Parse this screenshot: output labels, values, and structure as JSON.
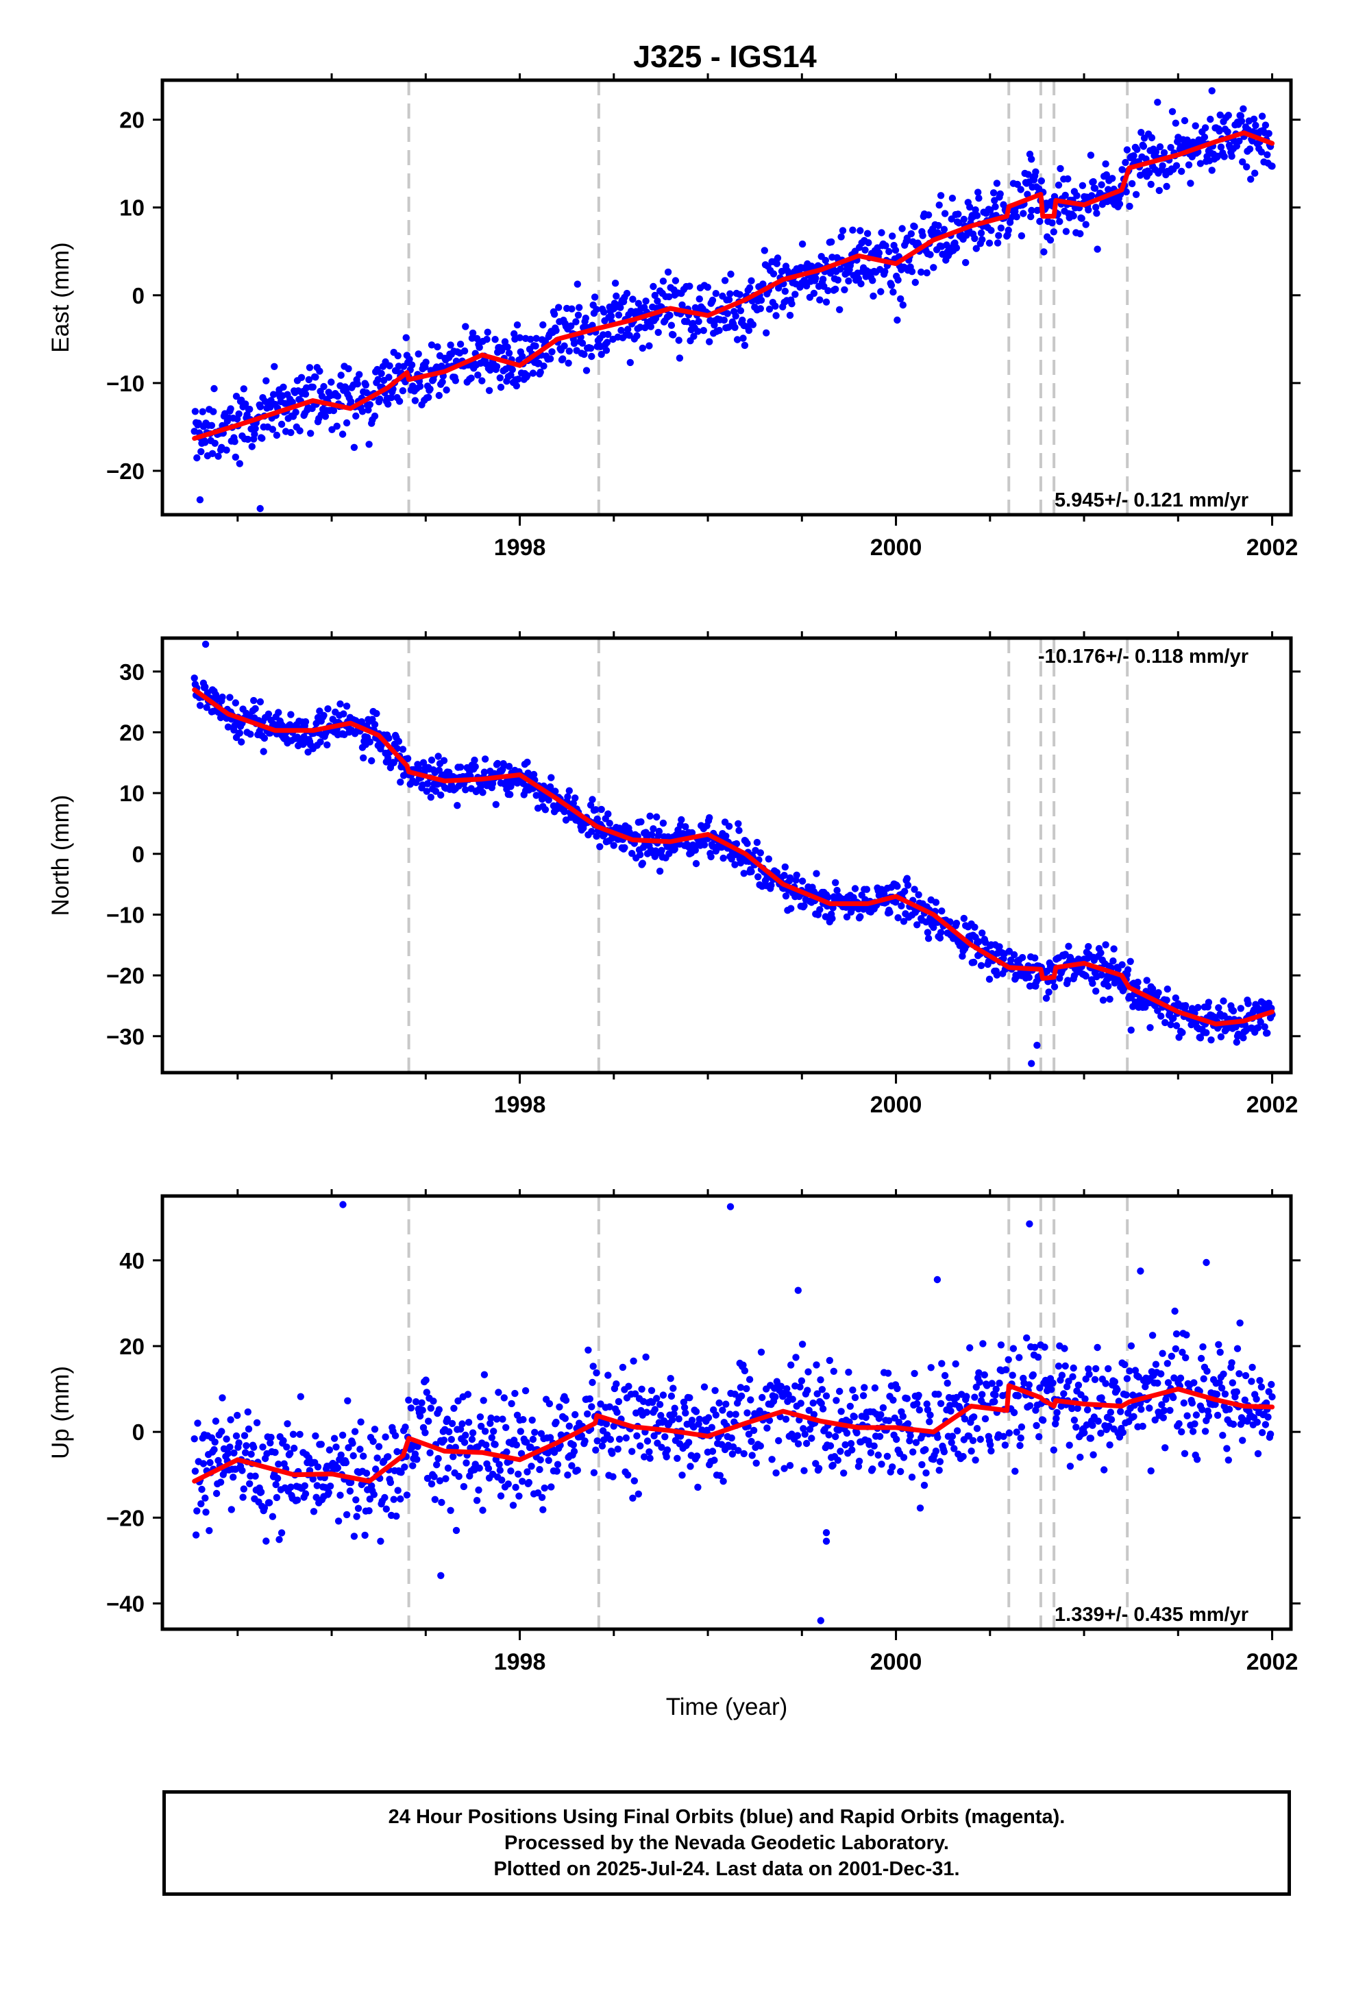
{
  "title": "J325 - IGS14",
  "colors": {
    "data": "#0000ff",
    "model": "#ff0000",
    "breaks": "#c8c8c8",
    "axis": "#000000"
  },
  "chart_data": [
    {
      "type": "scatter",
      "component": "east",
      "ylabel": "East (mm)",
      "ylim": [
        -25,
        24.5
      ],
      "yticks": [
        -20,
        -10,
        0,
        10,
        20
      ],
      "xlim": [
        1996.1,
        2002.1
      ],
      "xticks": [
        1998,
        2000,
        2002
      ],
      "tick_labels": [
        "1998",
        "2000",
        "2002"
      ],
      "rate_label": "5.945+/- 0.121 mm/yr",
      "noise_sd": 1.8,
      "model_knots": [
        [
          1996.27,
          -16.3
        ],
        [
          1996.5,
          -14.8
        ],
        [
          1996.9,
          -12.0
        ],
        [
          1997.1,
          -12.9
        ],
        [
          1997.3,
          -10.5
        ],
        [
          1997.4,
          -8.8
        ],
        [
          1997.41,
          -9.6
        ],
        [
          1997.6,
          -8.7
        ],
        [
          1997.8,
          -6.8
        ],
        [
          1998.0,
          -8.0
        ],
        [
          1998.2,
          -5.0
        ],
        [
          1998.41,
          -3.8
        ],
        [
          1998.6,
          -2.8
        ],
        [
          1998.8,
          -1.5
        ],
        [
          1999.0,
          -2.3
        ],
        [
          1999.2,
          -0.5
        ],
        [
          1999.4,
          1.8
        ],
        [
          1999.6,
          2.9
        ],
        [
          1999.8,
          4.5
        ],
        [
          2000.0,
          3.6
        ],
        [
          2000.2,
          6.3
        ],
        [
          2000.4,
          7.9
        ],
        [
          2000.59,
          9.0
        ],
        [
          2000.6,
          10.1
        ],
        [
          2000.77,
          11.5
        ],
        [
          2000.78,
          9.0
        ],
        [
          2000.84,
          9.0
        ],
        [
          2000.85,
          10.8
        ],
        [
          2001.0,
          10.3
        ],
        [
          2001.2,
          12.0
        ],
        [
          2001.24,
          14.5
        ],
        [
          2001.5,
          16.0
        ],
        [
          2001.7,
          17.5
        ],
        [
          2001.85,
          18.5
        ],
        [
          2002.0,
          17.3
        ]
      ],
      "outliers": [
        [
          1996.3,
          -23.3
        ],
        [
          1996.62,
          -24.3
        ],
        [
          2000.72,
          15.5
        ],
        [
          2001.68,
          23.3
        ]
      ]
    },
    {
      "type": "scatter",
      "component": "north",
      "ylabel": "North (mm)",
      "ylim": [
        -36,
        35.5
      ],
      "yticks": [
        -30,
        -20,
        -10,
        0,
        10,
        20,
        30
      ],
      "xlim": [
        1996.1,
        2002.1
      ],
      "xticks": [
        1998,
        2000,
        2002
      ],
      "tick_labels": [
        "1998",
        "2000",
        "2002"
      ],
      "rate_label": "-10.176+/- 0.118 mm/yr",
      "noise_sd": 1.6,
      "model_knots": [
        [
          1996.27,
          27.0
        ],
        [
          1996.45,
          23.0
        ],
        [
          1996.7,
          20.3
        ],
        [
          1996.9,
          20.3
        ],
        [
          1997.1,
          21.5
        ],
        [
          1997.25,
          19.5
        ],
        [
          1997.4,
          14.5
        ],
        [
          1997.41,
          13.5
        ],
        [
          1997.6,
          12.0
        ],
        [
          1997.8,
          12.3
        ],
        [
          1998.0,
          13.0
        ],
        [
          1998.2,
          9.0
        ],
        [
          1998.41,
          4.5
        ],
        [
          1998.6,
          2.3
        ],
        [
          1998.8,
          2.0
        ],
        [
          1999.0,
          3.2
        ],
        [
          1999.2,
          0.0
        ],
        [
          1999.4,
          -5.0
        ],
        [
          1999.65,
          -8.2
        ],
        [
          1999.85,
          -8.2
        ],
        [
          2000.0,
          -7.0
        ],
        [
          2000.2,
          -10.0
        ],
        [
          2000.4,
          -15.0
        ],
        [
          2000.59,
          -18.5
        ],
        [
          2000.6,
          -18.7
        ],
        [
          2000.77,
          -19.0
        ],
        [
          2000.78,
          -20.5
        ],
        [
          2000.84,
          -20.3
        ],
        [
          2000.85,
          -18.7
        ],
        [
          2001.0,
          -18.0
        ],
        [
          2001.2,
          -20.0
        ],
        [
          2001.24,
          -22.0
        ],
        [
          2001.5,
          -26.0
        ],
        [
          2001.7,
          -28.0
        ],
        [
          2001.85,
          -27.5
        ],
        [
          2002.0,
          -26.0
        ]
      ],
      "outliers": [
        [
          1996.33,
          34.5
        ],
        [
          2000.72,
          -34.5
        ],
        [
          2000.75,
          -31.5
        ],
        [
          2001.25,
          -29.0
        ]
      ]
    },
    {
      "type": "scatter",
      "component": "up",
      "ylabel": "Up (mm)",
      "xlabel": "Time (year)",
      "ylim": [
        -46,
        55
      ],
      "yticks": [
        -40,
        -20,
        0,
        20,
        40
      ],
      "xlim": [
        1996.1,
        2002.1
      ],
      "xticks": [
        1998,
        2000,
        2002
      ],
      "tick_labels": [
        "1998",
        "2000",
        "2002"
      ],
      "rate_label": "1.339+/- 0.435 mm/yr",
      "noise_sd": 6.5,
      "model_knots": [
        [
          1996.27,
          -11.5
        ],
        [
          1996.5,
          -6.5
        ],
        [
          1996.8,
          -10.0
        ],
        [
          1997.0,
          -9.8
        ],
        [
          1997.2,
          -11.5
        ],
        [
          1997.38,
          -5.5
        ],
        [
          1997.41,
          -1.5
        ],
        [
          1997.6,
          -4.5
        ],
        [
          1997.8,
          -4.8
        ],
        [
          1998.0,
          -6.5
        ],
        [
          1998.2,
          -2.5
        ],
        [
          1998.4,
          2.0
        ],
        [
          1998.41,
          3.8
        ],
        [
          1998.6,
          1.2
        ],
        [
          1998.8,
          0.3
        ],
        [
          1999.0,
          -1.0
        ],
        [
          1999.2,
          2.0
        ],
        [
          1999.4,
          4.8
        ],
        [
          1999.6,
          2.5
        ],
        [
          1999.8,
          1.0
        ],
        [
          2000.0,
          1.0
        ],
        [
          2000.2,
          0.0
        ],
        [
          2000.4,
          6.0
        ],
        [
          2000.59,
          5.0
        ],
        [
          2000.6,
          10.8
        ],
        [
          2000.77,
          8.0
        ],
        [
          2000.78,
          7.5
        ],
        [
          2000.84,
          6.0
        ],
        [
          2000.85,
          7.3
        ],
        [
          2001.0,
          6.5
        ],
        [
          2001.2,
          6.0
        ],
        [
          2001.24,
          7.0
        ],
        [
          2001.5,
          10.0
        ],
        [
          2001.7,
          7.5
        ],
        [
          2001.85,
          6.0
        ],
        [
          2002.0,
          5.8
        ]
      ],
      "outliers": [
        [
          1997.06,
          53.0
        ],
        [
          1999.12,
          52.5
        ],
        [
          2000.71,
          48.5
        ],
        [
          1999.6,
          -44.0
        ],
        [
          1997.58,
          -33.5
        ],
        [
          1999.63,
          -23.5
        ],
        [
          1999.63,
          -25.5
        ],
        [
          2000.22,
          35.5
        ],
        [
          2001.3,
          37.5
        ],
        [
          2001.65,
          39.5
        ],
        [
          1999.48,
          33.0
        ]
      ]
    }
  ],
  "break_years": [
    1997.41,
    1998.42,
    2000.6,
    2000.77,
    2000.84,
    2001.23
  ],
  "data_start": 1996.27,
  "data_end": 2002.0,
  "footer": {
    "line1": "24 Hour Positions Using Final Orbits (blue) and Rapid Orbits (magenta).",
    "line2": "Processed by the Nevada Geodetic Laboratory.",
    "line3": "Plotted on 2025-Jul-24. Last data on 2001-Dec-31."
  }
}
